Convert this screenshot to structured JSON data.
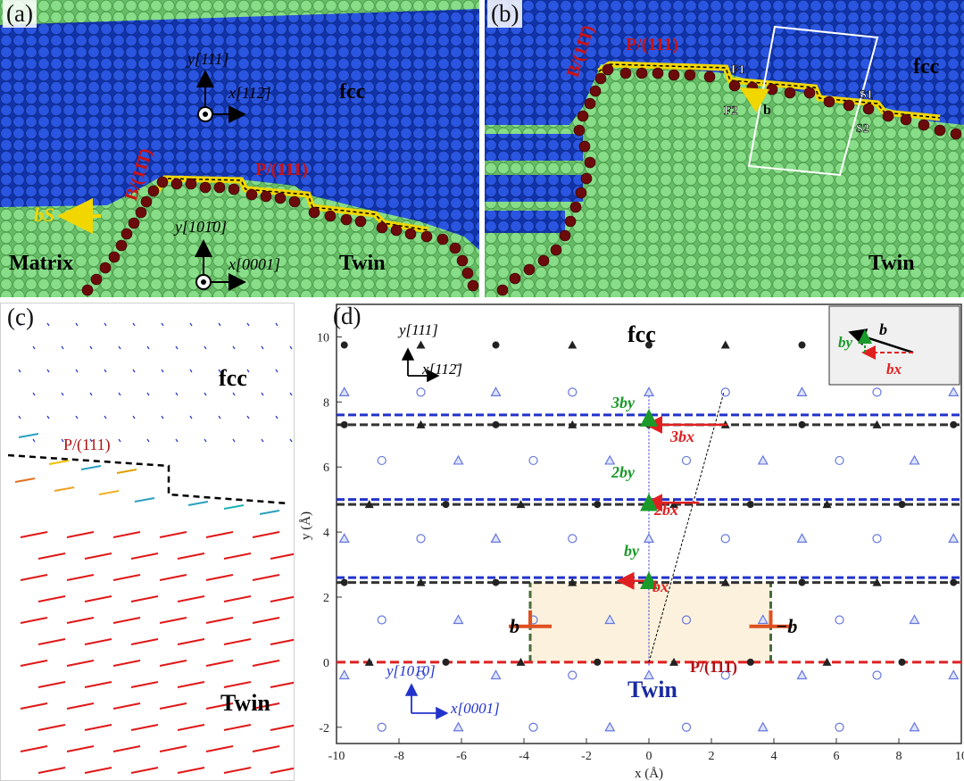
{
  "panel_a": {
    "label": "(a)",
    "axis_upper_y": "y[111]",
    "axis_upper_x": "x[112̄]",
    "phase_fcc": "fcc",
    "boundary_B": "B/(11̄1̄)",
    "boundary_P": "P/(111)",
    "burgers": "bS",
    "axis_lower_y": "y[101̄0]",
    "axis_lower_x": "x[0001]",
    "matrix": "Matrix",
    "twin": "Twin"
  },
  "panel_b": {
    "label": "(b)",
    "boundary_B": "B/(11̄1̄)",
    "boundary_P": "P/(111)",
    "phase_fcc": "fcc",
    "twin": "Twin",
    "site_F1": "F1",
    "site_F2": "F2",
    "site_S1": "S1",
    "site_S2": "S2",
    "burgers": "b"
  },
  "panel_c": {
    "label": "(c)",
    "phase_fcc": "fcc",
    "boundary_P": "P/(111)",
    "twin": "Twin"
  },
  "panel_d": {
    "label": "(d)",
    "fcc": "fcc",
    "twin": "Twin",
    "boundary_P": "P/(111)",
    "axis_top_y": "y[111]",
    "axis_top_x": "x[112̄]",
    "axis_bottom_y": "y[101̄0]",
    "axis_bottom_x": "x[0001]",
    "lbl_3by": "3by",
    "lbl_3bx": "3bx",
    "lbl_2by": "2by",
    "lbl_2bx": "2bx",
    "lbl_by": "by",
    "lbl_bx": "bx",
    "lbl_b": "b",
    "lbl_neg_b": "−b",
    "inset_b": "b",
    "inset_by": "by",
    "inset_bx": "bx",
    "colors": {
      "red": "#e02020",
      "green": "#1a9a2a",
      "blue": "#2233cc",
      "gray": "#333333"
    }
  },
  "chart_data": {
    "type": "scatter",
    "xlabel": "x (Å)",
    "ylabel": "y (Å)",
    "xlim": [
      -10,
      10
    ],
    "ylim": [
      -2.5,
      11
    ],
    "xticks": [
      -10,
      -8,
      -6,
      -4,
      -2,
      0,
      2,
      4,
      6,
      8,
      10
    ],
    "yticks": [
      -2,
      0,
      2,
      4,
      6,
      8,
      10
    ],
    "fcc_layers_y": [
      2.45,
      4.85,
      7.3
    ],
    "fcc_top_y": 9.75,
    "hcp_layers_y": [
      2.6,
      5.0,
      7.6
    ],
    "interface_y": 0.0,
    "glide_arrows": [
      {
        "layer": 1,
        "bx": -0.0,
        "from_x": 0.0,
        "to_x": -0.9,
        "y": 2.5
      },
      {
        "layer": 2,
        "from_x": 1.6,
        "to_x": 0.0,
        "y": 4.9
      },
      {
        "layer": 3,
        "from_x": 2.5,
        "to_x": 0.0,
        "y": 7.3
      }
    ],
    "climb_arrows": [
      {
        "layer": 1,
        "from_y": 2.45,
        "to_y": 2.6
      },
      {
        "layer": 2,
        "from_y": 4.85,
        "to_y": 5.0
      },
      {
        "layer": 3,
        "from_y": 7.3,
        "to_y": 7.6
      }
    ],
    "dislocations": [
      {
        "x": -3.8,
        "y": 1.1,
        "sign": "b"
      },
      {
        "x": 3.9,
        "y": 1.1,
        "sign": "-b"
      }
    ],
    "shaded_region": {
      "x": [
        -3.8,
        3.9
      ],
      "y": [
        0,
        2.45
      ]
    },
    "dashed_trace": {
      "x": [
        0,
        2.4
      ],
      "y": [
        0,
        8.3
      ]
    }
  }
}
